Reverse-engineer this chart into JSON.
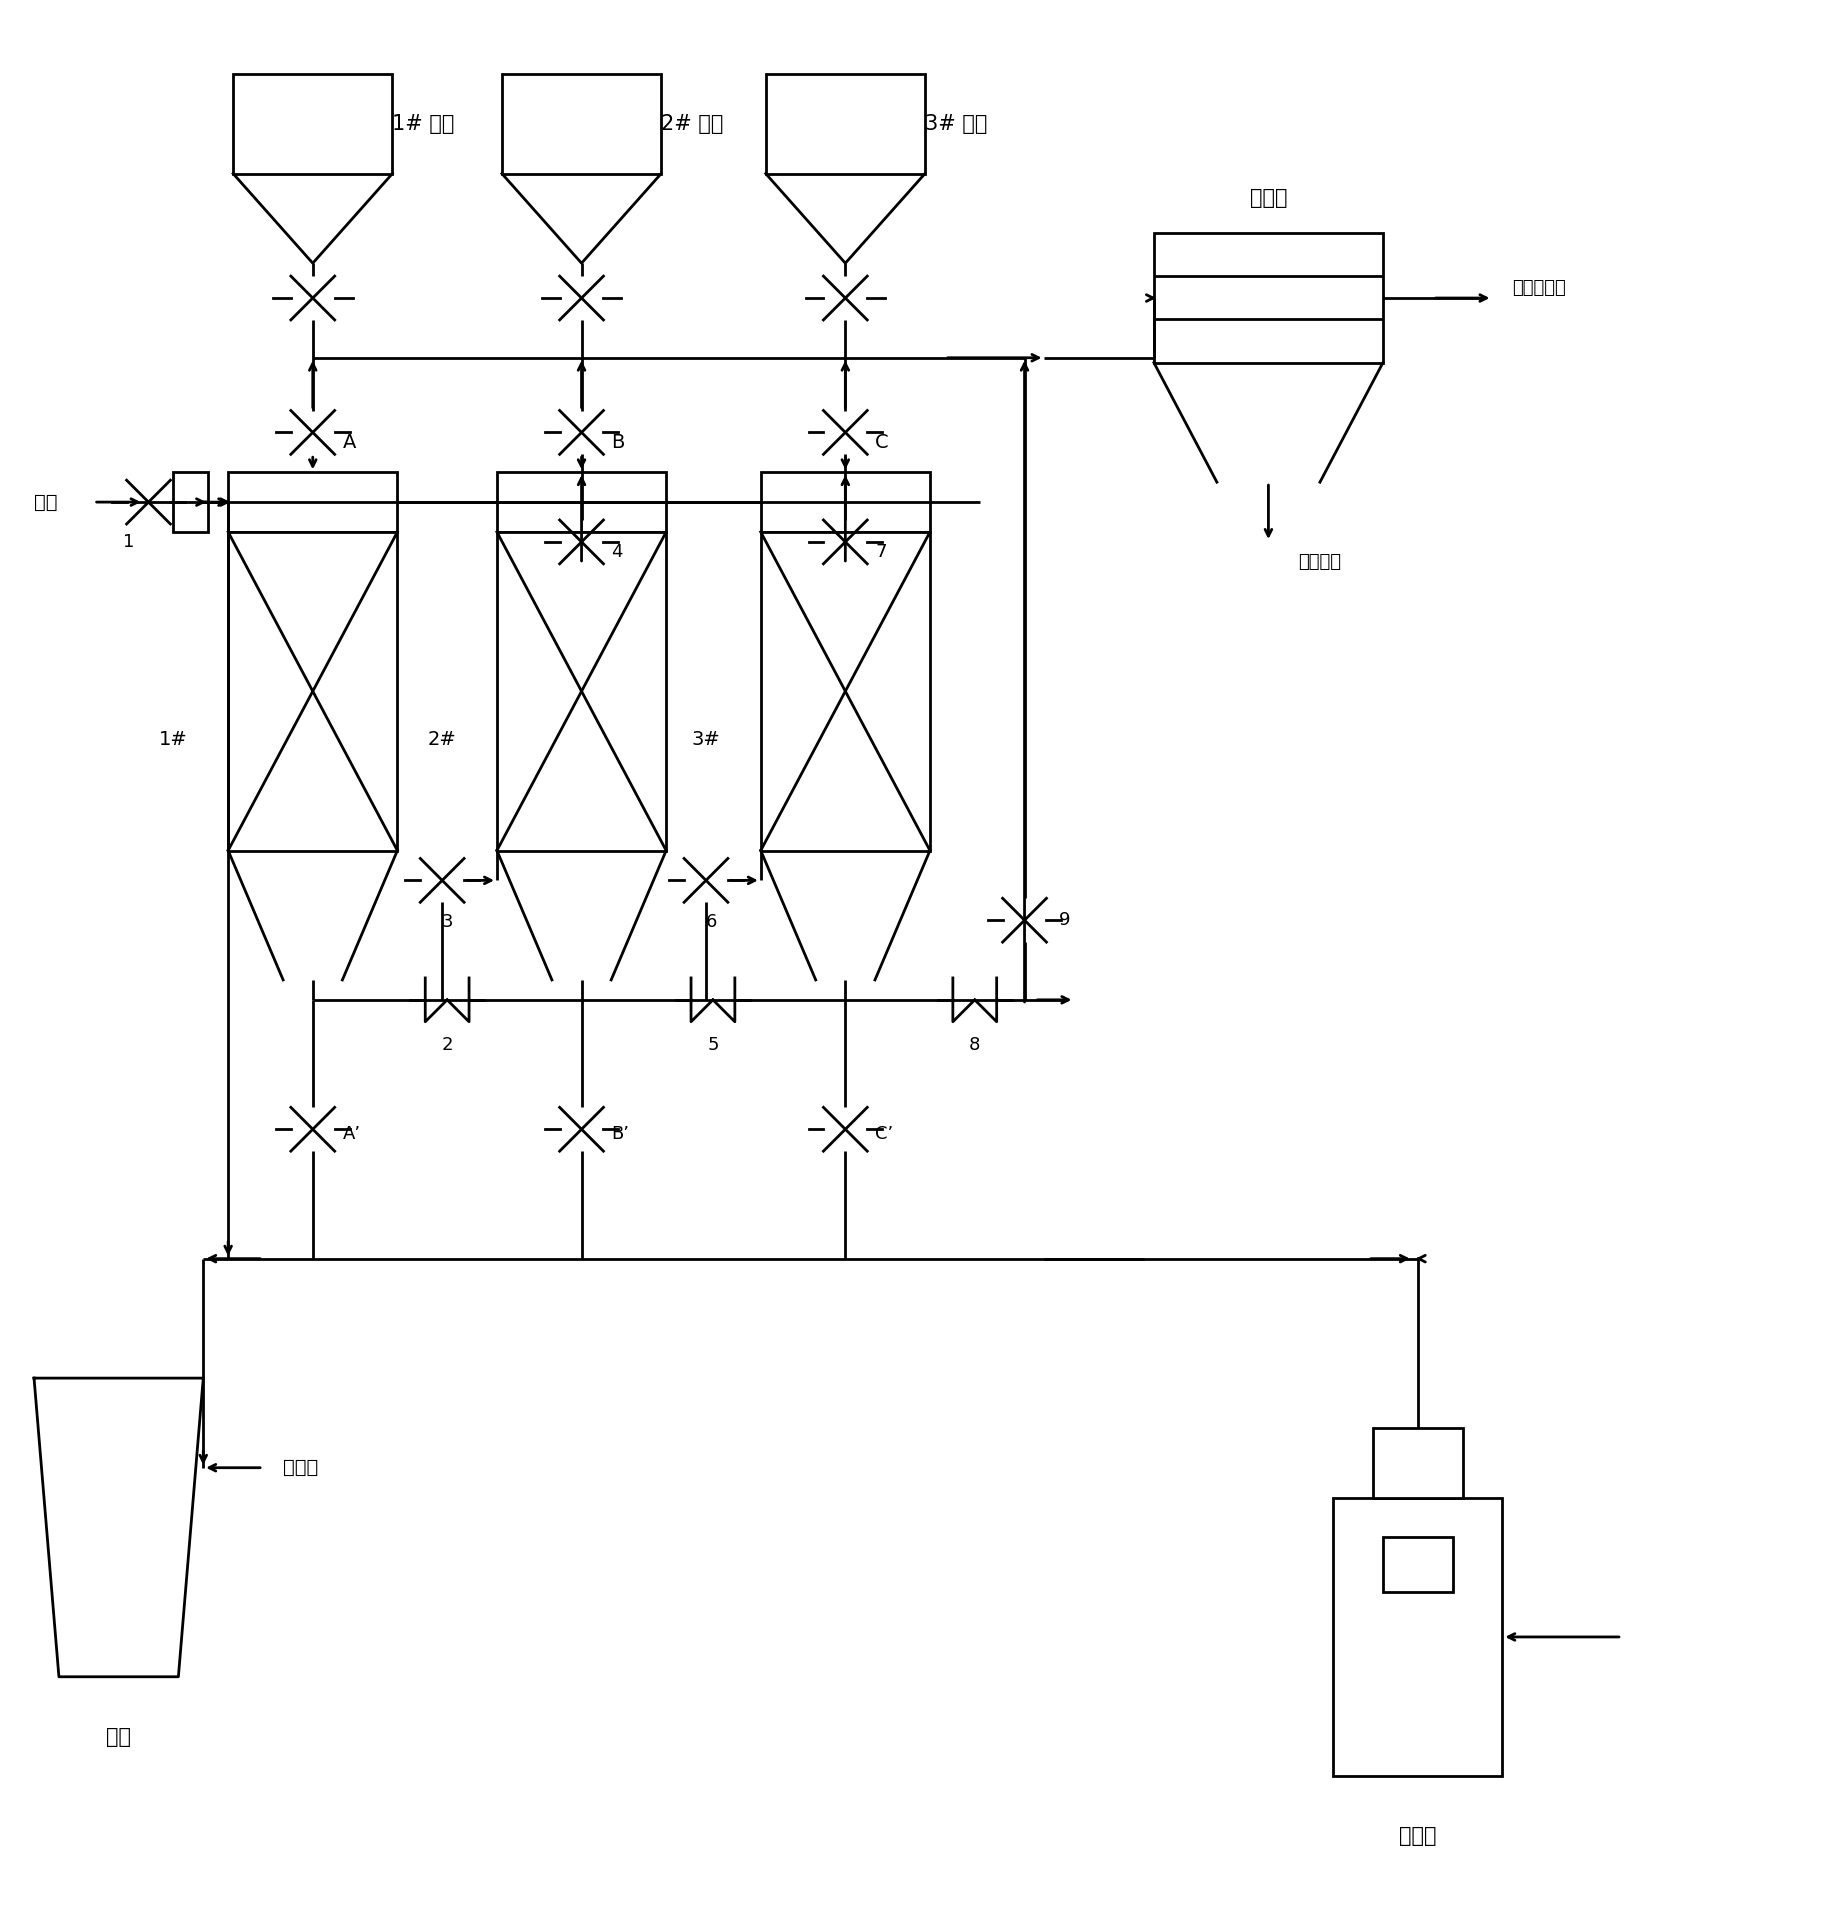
{
  "fig_width": 18.43,
  "fig_height": 19.28,
  "dpi": 100,
  "bg_color": "#ffffff",
  "lc": "#000000",
  "lw": 2.0,
  "bin_labels": [
    "1# 料仓",
    "2# 料仓",
    "3# 料仓"
  ],
  "reactor_labels": [
    "1#",
    "2#",
    "3#"
  ],
  "label_yanqi": "烟气",
  "label_chimney": "烟囱",
  "label_jinghua": "净化气",
  "label_cooler": "冷却器",
  "label_liuhuang_rec": "硫磺回收器",
  "label_liuhuang_out": "硫磺出口",
  "label_refan": "热风炉",
  "valve_labels": {
    "v1": "1",
    "v2": "2",
    "v3": "3",
    "v4": "4",
    "v5": "5",
    "v6": "6",
    "v7": "7",
    "v8": "8",
    "v9": "9",
    "vA": "A",
    "vB": "B",
    "vC": "C",
    "vAp": "A’",
    "vBp": "B’",
    "vCp": "C’"
  }
}
